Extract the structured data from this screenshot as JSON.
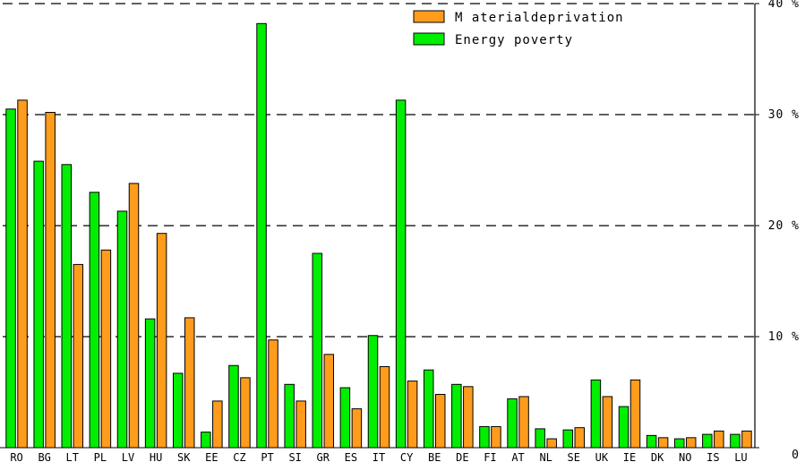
{
  "chart_data": {
    "type": "bar",
    "categories": [
      "RO",
      "BG",
      "LT",
      "PL",
      "LV",
      "HU",
      "SK",
      "EE",
      "CZ",
      "PT",
      "SI",
      "GR",
      "ES",
      "IT",
      "CY",
      "BE",
      "DE",
      "FI",
      "AT",
      "NL",
      "SE",
      "UK",
      "IE",
      "DK",
      "NO",
      "IS",
      "LU"
    ],
    "series": [
      {
        "name": "Energy poverty",
        "color": "#00ee00",
        "values": [
          30.5,
          25.8,
          25.5,
          23.0,
          21.3,
          11.6,
          6.7,
          1.4,
          7.4,
          38.2,
          5.7,
          17.5,
          5.4,
          10.1,
          31.3,
          7.0,
          5.7,
          1.9,
          4.4,
          1.7,
          1.6,
          6.1,
          3.7,
          1.1,
          0.8,
          1.2,
          1.2
        ]
      },
      {
        "name": "M aterialdeprivation",
        "color": "#ff9c1c",
        "values": [
          31.3,
          30.2,
          16.5,
          17.8,
          23.8,
          19.3,
          11.7,
          4.2,
          6.3,
          9.7,
          4.2,
          8.4,
          3.5,
          7.3,
          6.0,
          4.8,
          5.5,
          1.9,
          4.6,
          0.8,
          1.8,
          4.6,
          6.1,
          0.9,
          0.9,
          1.5,
          1.5
        ]
      }
    ],
    "ylim": [
      0,
      40
    ],
    "yticks": [
      {
        "value": 0,
        "label": "0"
      },
      {
        "value": 10,
        "label": "10 %"
      },
      {
        "value": 20,
        "label": "20 %"
      },
      {
        "value": 30,
        "label": "30 %"
      },
      {
        "value": 40,
        "label": "40 %"
      }
    ],
    "grid": true,
    "legend_position": "top-center",
    "title": "",
    "xlabel": "",
    "ylabel": ""
  }
}
